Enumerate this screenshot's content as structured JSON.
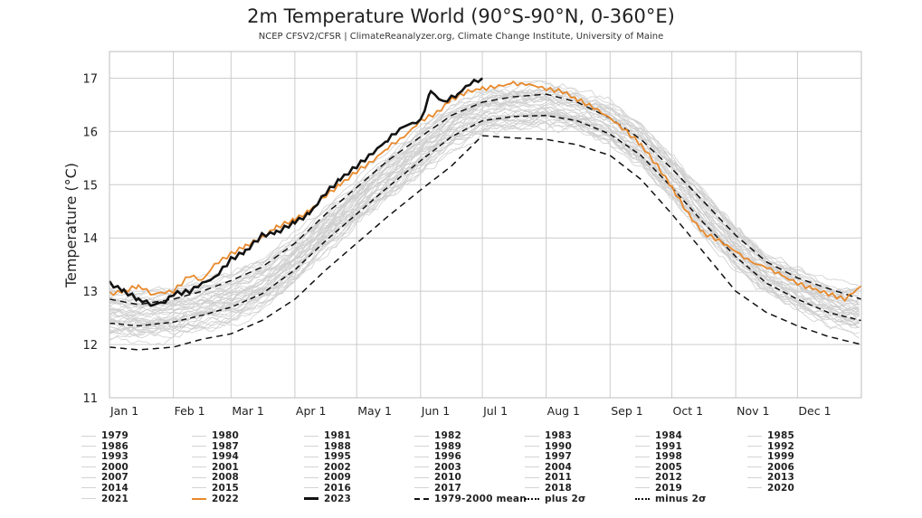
{
  "title": "2m Temperature World (90°S-90°N, 0-360°E)",
  "subtitle": "NCEP CFSV2/CFSR | ClimateReanalyzer.org, Climate Change Institute, University of Maine",
  "chart_data": {
    "type": "line",
    "title": "2m Temperature World (90°S-90°N, 0-360°E)",
    "subtitle": "NCEP CFSV2/CFSR | ClimateReanalyzer.org, Climate Change Institute, University of Maine",
    "xlabel": "",
    "ylabel": "Temperature (°C)",
    "ylim": [
      11,
      17.5
    ],
    "xlim_day_of_year": [
      1,
      366
    ],
    "yticks": [
      11,
      12,
      13,
      14,
      15,
      16,
      17
    ],
    "xticks": [
      {
        "label": "Jan 1",
        "day": 1
      },
      {
        "label": "Feb 1",
        "day": 32
      },
      {
        "label": "Mar 1",
        "day": 60
      },
      {
        "label": "Apr 1",
        "day": 91
      },
      {
        "label": "May 1",
        "day": 121
      },
      {
        "label": "Jun 1",
        "day": 152
      },
      {
        "label": "Jul 1",
        "day": 182
      },
      {
        "label": "Aug 1",
        "day": 213
      },
      {
        "label": "Sep 1",
        "day": 244
      },
      {
        "label": "Oct 1",
        "day": 274
      },
      {
        "label": "Nov 1",
        "day": 305
      },
      {
        "label": "Dec 1",
        "day": 335
      }
    ],
    "grid": true,
    "legend_position": "bottom",
    "colors": {
      "historical": "#cfcfcf",
      "y2022": "#e8892b",
      "y2023": "#111111",
      "mean": "#111111"
    },
    "series": [
      {
        "name": "1979-2000 mean",
        "style": "dashed",
        "day": [
          1,
          15,
          32,
          46,
          60,
          75,
          91,
          106,
          121,
          136,
          152,
          167,
          182,
          197,
          213,
          228,
          244,
          259,
          274,
          289,
          305,
          320,
          335,
          350,
          366
        ],
        "values": [
          12.4,
          12.35,
          12.42,
          12.55,
          12.7,
          12.95,
          13.4,
          13.95,
          14.45,
          14.95,
          15.45,
          15.9,
          16.2,
          16.28,
          16.3,
          16.2,
          15.95,
          15.55,
          14.95,
          14.3,
          13.65,
          13.15,
          12.85,
          12.6,
          12.45
        ]
      },
      {
        "name": "plus 2σ",
        "style": "dashdot",
        "day": [
          1,
          15,
          32,
          46,
          60,
          75,
          91,
          106,
          121,
          136,
          152,
          167,
          182,
          197,
          213,
          228,
          244,
          259,
          274,
          289,
          305,
          320,
          335,
          350,
          366
        ],
        "values": [
          12.85,
          12.75,
          12.85,
          13.0,
          13.2,
          13.45,
          13.9,
          14.45,
          14.95,
          15.45,
          15.9,
          16.3,
          16.55,
          16.65,
          16.7,
          16.55,
          16.25,
          15.85,
          15.3,
          14.7,
          14.05,
          13.55,
          13.25,
          13.05,
          12.85
        ]
      },
      {
        "name": "minus 2σ",
        "style": "dashdot",
        "day": [
          1,
          15,
          32,
          46,
          60,
          75,
          91,
          106,
          121,
          136,
          152,
          167,
          182,
          197,
          213,
          228,
          244,
          259,
          274,
          289,
          305,
          320,
          335,
          350,
          366
        ],
        "values": [
          11.95,
          11.9,
          11.95,
          12.1,
          12.2,
          12.45,
          12.85,
          13.4,
          13.9,
          14.4,
          14.9,
          15.35,
          15.92,
          15.88,
          15.85,
          15.75,
          15.55,
          15.1,
          14.45,
          13.75,
          13.0,
          12.6,
          12.35,
          12.15,
          12.0
        ]
      },
      {
        "name": "2022",
        "day": [
          1,
          8,
          15,
          22,
          32,
          40,
          46,
          52,
          60,
          67,
          75,
          82,
          91,
          98,
          106,
          113,
          121,
          129,
          136,
          144,
          152,
          160,
          167,
          175,
          182,
          190,
          197,
          205,
          213,
          221,
          228,
          236,
          244,
          252,
          259,
          267,
          274,
          282,
          289,
          297,
          305,
          312,
          320,
          327,
          335,
          342,
          350,
          358,
          366
        ],
        "values": [
          12.95,
          13.0,
          13.1,
          12.95,
          13.0,
          13.3,
          13.2,
          13.5,
          13.7,
          13.85,
          14.0,
          14.2,
          14.35,
          14.5,
          14.8,
          15.0,
          15.25,
          15.45,
          15.7,
          15.9,
          16.2,
          16.35,
          16.6,
          16.75,
          16.8,
          16.85,
          16.9,
          16.88,
          16.8,
          16.75,
          16.6,
          16.45,
          16.25,
          16.0,
          15.75,
          15.35,
          14.95,
          14.45,
          14.1,
          13.95,
          13.75,
          13.55,
          13.45,
          13.3,
          13.15,
          13.05,
          12.95,
          12.85,
          13.1
        ]
      },
      {
        "name": "2023",
        "day": [
          1,
          8,
          15,
          22,
          28,
          32,
          40,
          46,
          52,
          60,
          67,
          75,
          82,
          91,
          98,
          106,
          113,
          121,
          129,
          136,
          144,
          152,
          157,
          163,
          170,
          176,
          182
        ],
        "values": [
          13.15,
          13.0,
          12.85,
          12.75,
          12.8,
          12.95,
          13.0,
          13.15,
          13.25,
          13.6,
          13.75,
          14.05,
          14.1,
          14.3,
          14.45,
          14.85,
          15.1,
          15.35,
          15.6,
          15.85,
          16.1,
          16.2,
          16.75,
          16.55,
          16.7,
          16.9,
          17.0
        ]
      }
    ],
    "historical_years": [
      1979,
      1980,
      1981,
      1982,
      1983,
      1984,
      1985,
      1986,
      1987,
      1988,
      1989,
      1990,
      1991,
      1992,
      1993,
      1994,
      1995,
      1996,
      1997,
      1998,
      1999,
      2000,
      2001,
      2002,
      2003,
      2004,
      2005,
      2006,
      2007,
      2008,
      2009,
      2010,
      2011,
      2012,
      2013,
      2014,
      2015,
      2016,
      2017,
      2018,
      2019,
      2020,
      2021
    ]
  },
  "legend": {
    "rows": [
      [
        "1979",
        "1980",
        "1981",
        "1982",
        "1983",
        "1984",
        "1985"
      ],
      [
        "1986",
        "1987",
        "1988",
        "1989",
        "1990",
        "1991",
        "1992"
      ],
      [
        "1993",
        "1994",
        "1995",
        "1996",
        "1997",
        "1998",
        "1999"
      ],
      [
        "2000",
        "2001",
        "2002",
        "2003",
        "2004",
        "2005",
        "2006"
      ],
      [
        "2007",
        "2008",
        "2009",
        "2010",
        "2011",
        "2012",
        "2013"
      ],
      [
        "2014",
        "2015",
        "2016",
        "2017",
        "2018",
        "2019",
        "2020"
      ],
      [
        "2021",
        "2022",
        "2023",
        "1979-2000 mean",
        "plus 2σ",
        "minus 2σ"
      ]
    ]
  }
}
